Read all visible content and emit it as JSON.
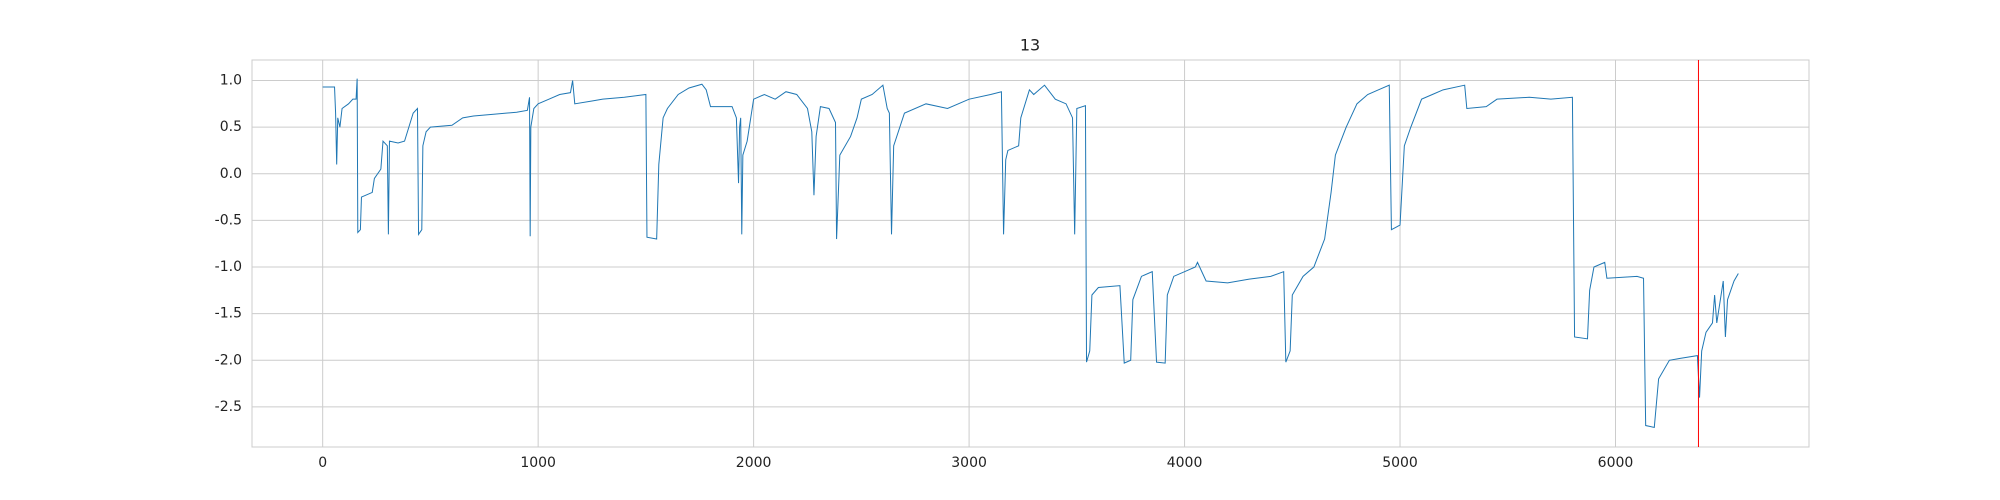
{
  "chart_data": {
    "type": "line",
    "title": "13",
    "x": [
      0,
      55,
      60,
      65,
      70,
      80,
      90,
      120,
      140,
      155,
      160,
      163,
      175,
      180,
      230,
      240,
      270,
      280,
      300,
      305,
      310,
      350,
      380,
      400,
      420,
      440,
      445,
      460,
      465,
      480,
      500,
      600,
      650,
      700,
      800,
      900,
      950,
      960,
      963,
      966,
      980,
      1000,
      1050,
      1100,
      1150,
      1160,
      1170,
      1250,
      1300,
      1400,
      1500,
      1505,
      1550,
      1560,
      1580,
      1600,
      1650,
      1700,
      1760,
      1780,
      1800,
      1900,
      1920,
      1930,
      1935,
      1940,
      1945,
      1950,
      1970,
      2000,
      2050,
      2100,
      2150,
      2200,
      2250,
      2270,
      2280,
      2290,
      2310,
      2350,
      2380,
      2385,
      2400,
      2450,
      2480,
      2500,
      2550,
      2600,
      2620,
      2630,
      2640,
      2650,
      2700,
      2800,
      2900,
      3000,
      3100,
      3150,
      3160,
      3170,
      3180,
      3230,
      3240,
      3280,
      3300,
      3350,
      3400,
      3450,
      3480,
      3490,
      3500,
      3540,
      3545,
      3560,
      3570,
      3600,
      3700,
      3720,
      3750,
      3760,
      3800,
      3850,
      3870,
      3910,
      3920,
      3950,
      4000,
      4050,
      4060,
      4100,
      4200,
      4300,
      4400,
      4460,
      4470,
      4490,
      4500,
      4550,
      4600,
      4650,
      4680,
      4700,
      4750,
      4800,
      4850,
      4900,
      4950,
      4960,
      5000,
      5020,
      5050,
      5100,
      5150,
      5200,
      5300,
      5310,
      5400,
      5450,
      5600,
      5700,
      5800,
      5810,
      5870,
      5880,
      5900,
      5950,
      5960,
      6100,
      6130,
      6140,
      6180,
      6200,
      6250,
      6300,
      6380,
      6390,
      6400,
      6420,
      6450,
      6460,
      6470,
      6500,
      6510,
      6520,
      6550,
      6570
    ],
    "values": [
      0.93,
      0.93,
      0.65,
      0.1,
      0.6,
      0.5,
      0.7,
      0.75,
      0.8,
      0.8,
      1.02,
      -0.63,
      -0.6,
      -0.25,
      -0.2,
      -0.05,
      0.05,
      0.35,
      0.3,
      -0.65,
      0.35,
      0.33,
      0.35,
      0.5,
      0.65,
      0.7,
      -0.65,
      -0.6,
      0.3,
      0.45,
      0.5,
      0.52,
      0.6,
      0.62,
      0.64,
      0.66,
      0.68,
      0.82,
      -0.67,
      0.5,
      0.7,
      0.75,
      0.8,
      0.85,
      0.87,
      1.0,
      0.75,
      0.78,
      0.8,
      0.82,
      0.85,
      -0.68,
      -0.7,
      0.1,
      0.6,
      0.7,
      0.85,
      0.92,
      0.96,
      0.9,
      0.72,
      0.72,
      0.6,
      -0.1,
      0.5,
      0.6,
      -0.65,
      0.2,
      0.35,
      0.8,
      0.85,
      0.8,
      0.88,
      0.85,
      0.7,
      0.45,
      -0.23,
      0.4,
      0.72,
      0.7,
      0.55,
      -0.7,
      0.2,
      0.4,
      0.6,
      0.8,
      0.85,
      0.95,
      0.7,
      0.65,
      -0.65,
      0.3,
      0.65,
      0.75,
      0.7,
      0.8,
      0.85,
      0.88,
      -0.65,
      0.15,
      0.25,
      0.3,
      0.6,
      0.9,
      0.85,
      0.95,
      0.8,
      0.75,
      0.6,
      -0.65,
      0.7,
      0.73,
      -2.02,
      -1.9,
      -1.3,
      -1.22,
      -1.2,
      -2.03,
      -2.0,
      -1.35,
      -1.1,
      -1.05,
      -2.02,
      -2.03,
      -1.3,
      -1.1,
      -1.05,
      -1.0,
      -0.95,
      -1.15,
      -1.17,
      -1.13,
      -1.1,
      -1.05,
      -2.02,
      -1.9,
      -1.3,
      -1.1,
      -1.0,
      -0.7,
      -0.2,
      0.2,
      0.5,
      0.75,
      0.85,
      0.9,
      0.95,
      -0.6,
      -0.55,
      0.3,
      0.5,
      0.8,
      0.85,
      0.9,
      0.95,
      0.7,
      0.72,
      0.8,
      0.82,
      0.8,
      0.82,
      -1.75,
      -1.77,
      -1.25,
      -1.0,
      -0.95,
      -1.12,
      -1.1,
      -1.12,
      -2.7,
      -2.72,
      -2.2,
      -2.0,
      -1.98,
      -1.95,
      -2.4,
      -1.9,
      -1.7,
      -1.6,
      -1.3,
      -1.6,
      -1.15,
      -1.75,
      -1.35,
      -1.15,
      -1.07
    ],
    "color": "#1f77b4",
    "vline": {
      "x": 6385,
      "color": "#ff0000"
    },
    "xlim": [
      -328,
      6898
    ],
    "xticks": [
      0,
      1000,
      2000,
      3000,
      4000,
      5000,
      6000
    ],
    "ylim": [
      -2.93,
      1.22
    ],
    "yticks": [
      -2.5,
      {
        "value": -2,
        "label": "-2.0"
      },
      -1.5,
      {
        "value": -1,
        "label": "-1.0"
      },
      -0.5,
      {
        "value": 0,
        "label": "0.0"
      },
      0.5,
      {
        "value": 1,
        "label": "1.0"
      }
    ],
    "grid": true
  }
}
